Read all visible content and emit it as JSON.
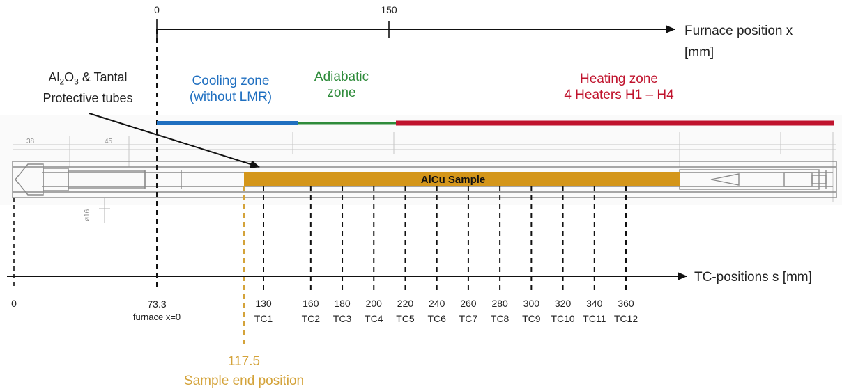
{
  "furnace_axis": {
    "label_line1": "Furnace position x",
    "label_line2": "[mm]",
    "ticks": [
      "0",
      "150"
    ]
  },
  "tc_axis": {
    "label": "TC-positions s [mm]",
    "origin": "0",
    "furnace_origin": {
      "value": "73.3",
      "note": "furnace x=0"
    }
  },
  "protective_tubes": {
    "line1_parts": [
      "Al",
      "2",
      "O",
      "3",
      " & Tantal"
    ],
    "line2": "Protective tubes"
  },
  "zones": [
    {
      "line1": "Cooling zone",
      "line2": "(without LMR)",
      "color": "#1f6fc0"
    },
    {
      "line1": "Adiabatic",
      "line2": "zone",
      "color": "#2e8b3a"
    },
    {
      "line1": "Heating zone",
      "line2": "4 Heaters H1 – H4",
      "color": "#c0132d"
    }
  ],
  "sample": {
    "label": "AlCu Sample",
    "color": "#d4961a"
  },
  "sample_end": {
    "value": "117.5",
    "label": "Sample end position",
    "color": "#d4a33a"
  },
  "thermocouples": [
    {
      "position": "130",
      "name": "TC1"
    },
    {
      "position": "160",
      "name": "TC2"
    },
    {
      "position": "180",
      "name": "TC3"
    },
    {
      "position": "200",
      "name": "TC4"
    },
    {
      "position": "220",
      "name": "TC5"
    },
    {
      "position": "240",
      "name": "TC6"
    },
    {
      "position": "260",
      "name": "TC7"
    },
    {
      "position": "280",
      "name": "TC8"
    },
    {
      "position": "300",
      "name": "TC9"
    },
    {
      "position": "320",
      "name": "TC10"
    },
    {
      "position": "340",
      "name": "TC11"
    },
    {
      "position": "360",
      "name": "TC12"
    }
  ],
  "drawing_dimensions": [
    "38",
    "45",
    "ø16"
  ]
}
